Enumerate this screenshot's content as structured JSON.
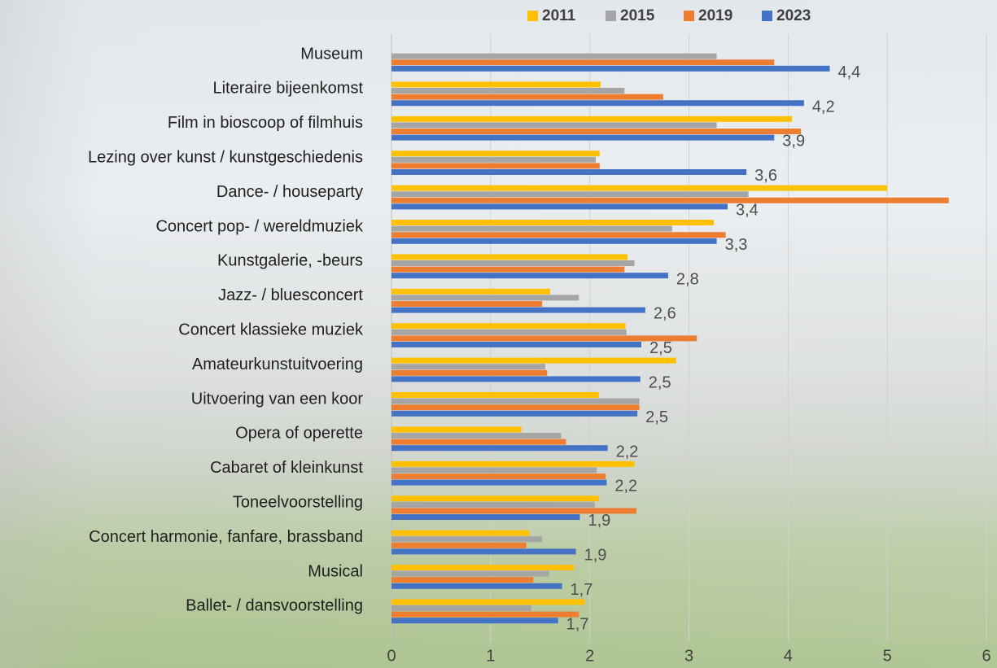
{
  "chart_data": {
    "type": "hbar",
    "categories": [
      "Museum",
      "Literaire bijeenkomst",
      "Film in bioscoop of filmhuis",
      "Lezing over kunst / kunstgeschiedenis",
      "Dance- / houseparty",
      "Concert pop- / wereldmuziek",
      "Kunstgalerie, -beurs",
      "Jazz- / bluesconcert",
      "Concert klassieke muziek",
      "Amateurkunstuitvoering",
      "Uitvoering van een koor",
      "Opera of operette",
      "Cabaret of kleinkunst",
      "Toneelvoorstelling",
      "Concert harmonie, fanfare, brassband",
      "Musical",
      "Ballet- / dansvoorstelling"
    ],
    "series": [
      {
        "name": "2011",
        "color": "#ffc000",
        "values": [
          null,
          2.11,
          4.04,
          2.1,
          5.0,
          3.25,
          2.38,
          1.6,
          2.36,
          2.87,
          2.09,
          1.31,
          2.45,
          2.09,
          1.39,
          1.84,
          1.95
        ]
      },
      {
        "name": "2015",
        "color": "#a5a5a5",
        "values": [
          3.28,
          2.35,
          3.28,
          2.06,
          3.6,
          2.83,
          2.45,
          1.89,
          2.37,
          1.55,
          2.5,
          1.71,
          2.07,
          2.05,
          1.52,
          1.59,
          1.41
        ]
      },
      {
        "name": "2019",
        "color": "#ed7d31",
        "values": [
          3.86,
          2.74,
          4.13,
          2.1,
          5.62,
          3.37,
          2.35,
          1.52,
          3.08,
          1.57,
          2.5,
          1.76,
          2.16,
          2.47,
          1.36,
          1.43,
          1.89
        ]
      },
      {
        "name": "2023",
        "color": "#4472c4",
        "values": [
          4.42,
          4.16,
          3.86,
          3.58,
          3.39,
          3.28,
          2.79,
          2.56,
          2.52,
          2.51,
          2.48,
          2.18,
          2.17,
          1.9,
          1.86,
          1.72,
          1.68
        ],
        "value_labels": [
          "4,4",
          "4,2",
          "3,9",
          "3,6",
          "3,4",
          "3,3",
          "2,8",
          "2,6",
          "2,5",
          "2,5",
          "2,5",
          "2,2",
          "2,2",
          "1,9",
          "1,9",
          "1,7",
          "1,7"
        ]
      }
    ],
    "xlim": [
      0,
      6
    ],
    "xticks": [
      0,
      1,
      2,
      3,
      4,
      5,
      6
    ],
    "grid": true,
    "legend": "top"
  }
}
